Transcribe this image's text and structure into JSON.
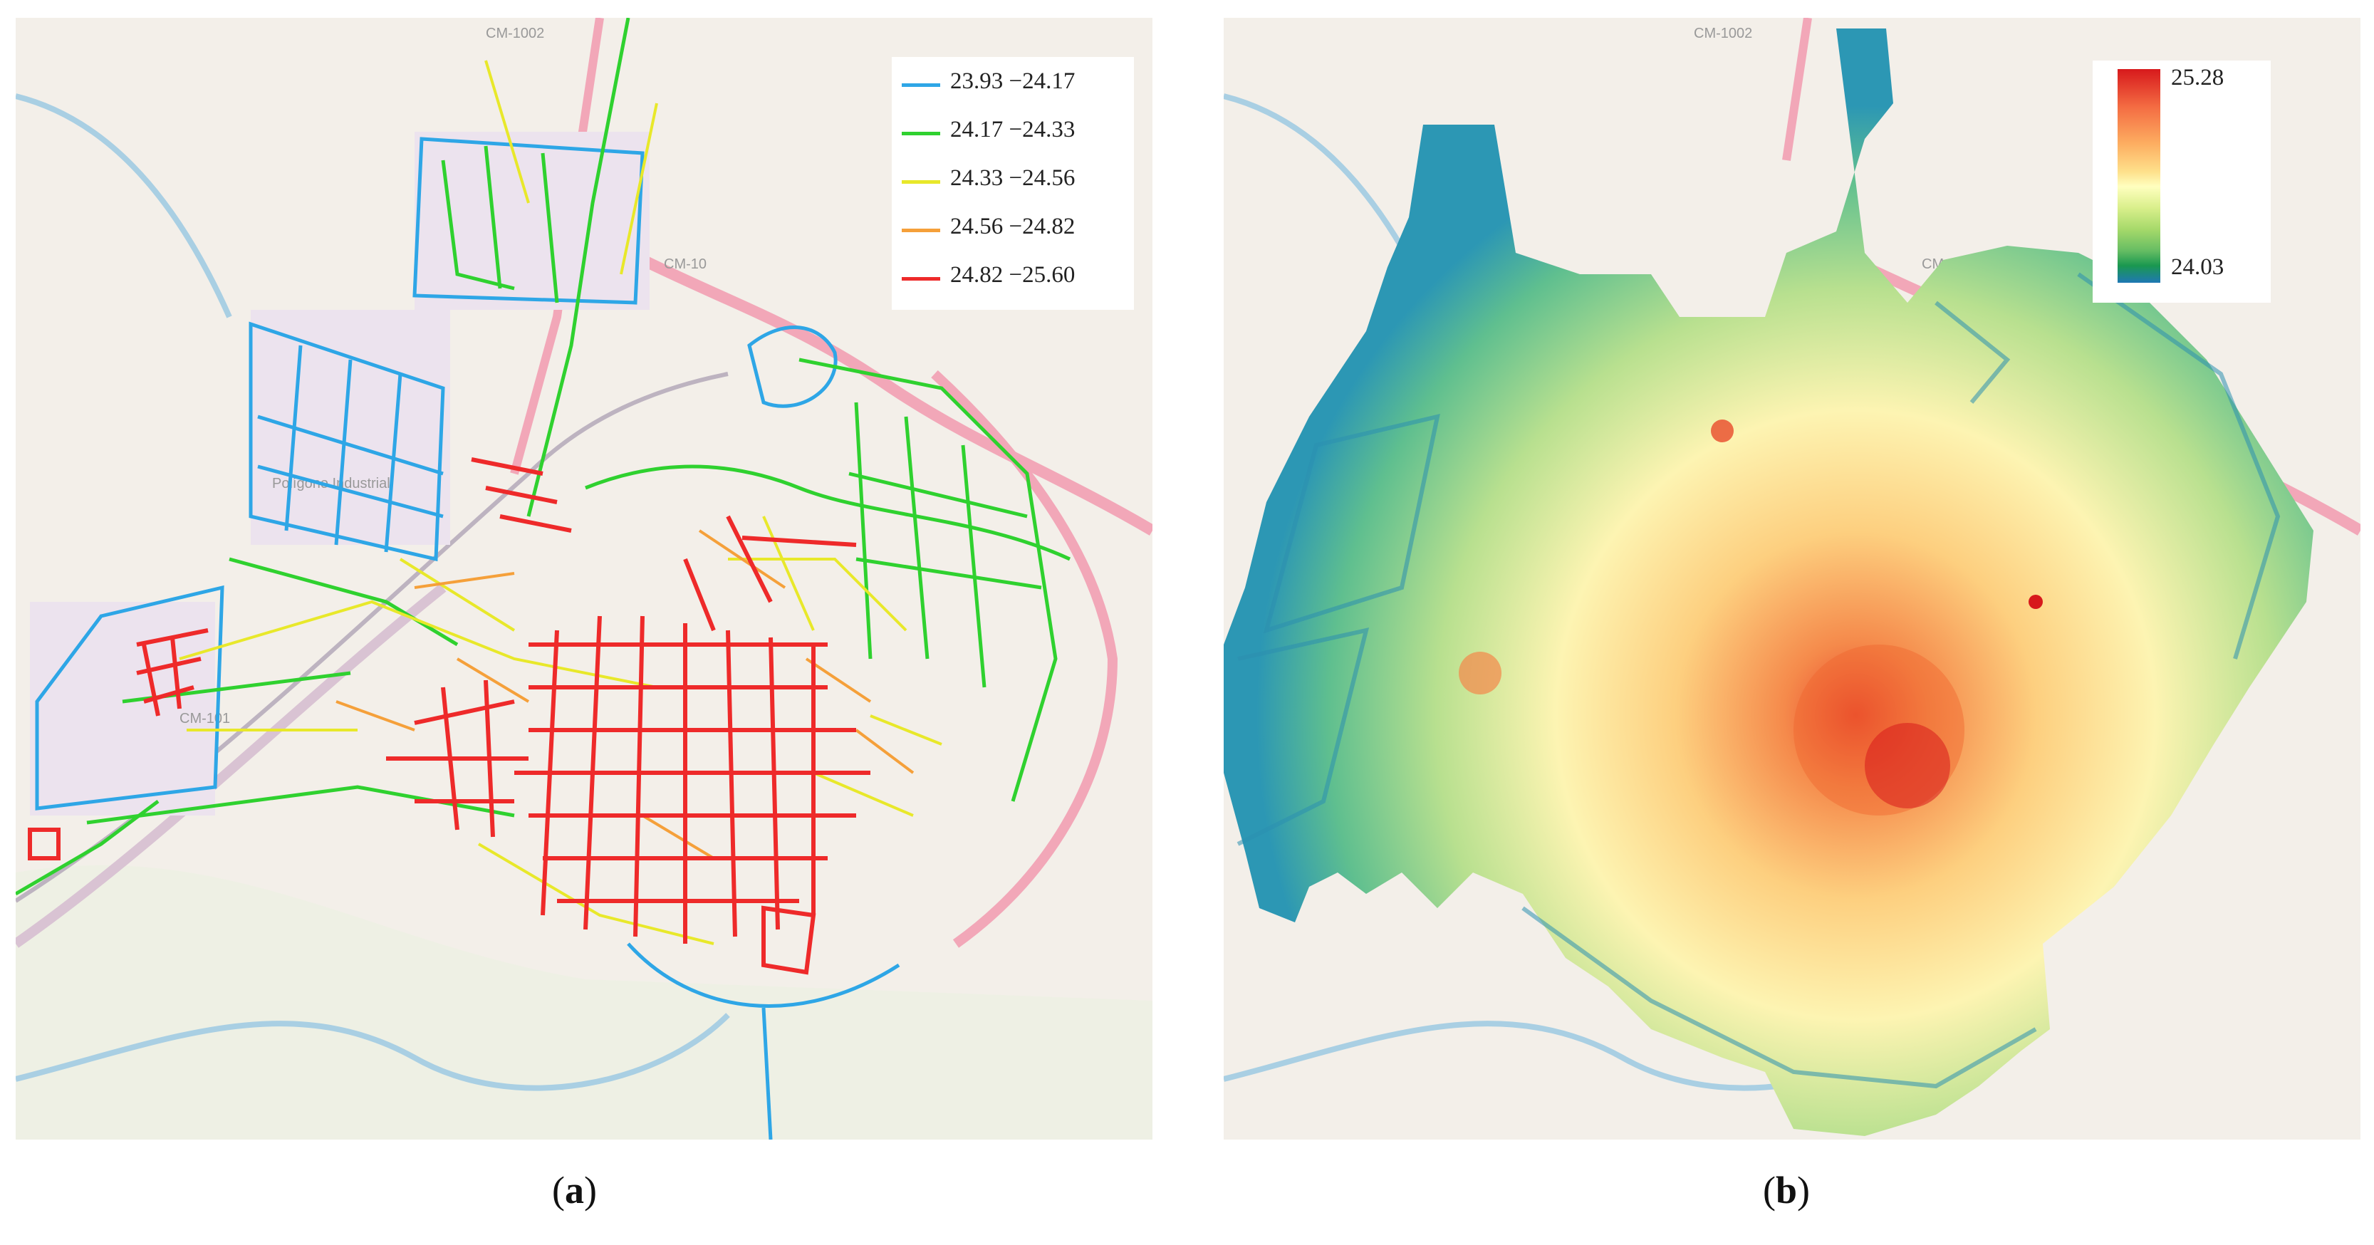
{
  "panel_a": {
    "caption_open": "(",
    "caption_letter": "a",
    "caption_close": ")",
    "legend": [
      {
        "label": "23.93 −24.17",
        "color": "#2ea6e6"
      },
      {
        "label": "24.17 −24.33",
        "color": "#2fd12f"
      },
      {
        "label": "24.33 −24.56",
        "color": "#e8e82a"
      },
      {
        "label": "24.56 −24.82",
        "color": "#f5a03a"
      },
      {
        "label": "24.82 −25.60",
        "color": "#ee2a2a"
      }
    ],
    "map_labels": {
      "cm1002": "CM-1002",
      "cm10": "CM-10",
      "cm101": "CM-101",
      "poligono": "Polígono Industrial"
    }
  },
  "panel_b": {
    "caption_open": "(",
    "caption_letter": "b",
    "caption_close": ")",
    "colorbar": {
      "max": "25.28",
      "min": "24.03"
    },
    "map_labels": {
      "cm1002": "CM-1002",
      "cm10": "CM-10"
    }
  },
  "colors": {
    "map_background": "#f3efe9",
    "road": "#f2a7b8",
    "river": "#a9cfe3",
    "heat_low": "#1f78b4",
    "heat_high": "#d7191c"
  }
}
